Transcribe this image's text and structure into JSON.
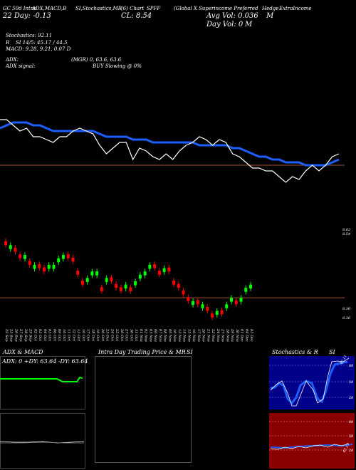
{
  "header": {
    "item1": "GC 50d Intra",
    "item2": "ADX,MACD,B",
    "item3": "SI,Stochastics,MR",
    "item4": "(6) Chart",
    "item5": "SPFF",
    "item6": "(Global X Superincome Preferred",
    "item7": "Hedge",
    "item8": "ExtraIncome",
    "row2_a": "22 Day: -0.13",
    "row2_b": "CL: 8.54",
    "row2_c": "Avg Vol: 0.036",
    "row2_c2": "M",
    "row3_c": "Day Vol: 0",
    "row3_c2": "M"
  },
  "indicators": {
    "stochastics": "Stochastics: 92.11",
    "r_line": "R",
    "si_values": "SI 14/5: 45.17 / 44.5",
    "macd": "MACD: 9.28, 9.21, 0.07 D",
    "adx": "ADX:",
    "mgr": "(MGR) 0, 63.6, 63.6",
    "adx_signal": "ADX signal:",
    "buy": "BUY Slowing @ 0%"
  },
  "price_scale": {
    "main_last": "8.62",
    "main_last2": "8.54",
    "lower_a": "8.36",
    "lower_b": "8.36"
  },
  "dates": [
    "22 Sep",
    "25 Sep",
    "26 Sep",
    "27 Sep",
    "28 Sep",
    "29 Sep",
    "02 Oct",
    "03 Oct",
    "04 Oct",
    "05 Oct",
    "06 Oct",
    "09 Oct",
    "10 Oct",
    "11 Oct",
    "12 Oct",
    "13 Oct",
    "16 Oct",
    "17 Oct",
    "18 Oct",
    "19 Oct",
    "20 Oct",
    "23 Oct",
    "24 Oct",
    "25 Oct",
    "26 Oct",
    "27 Oct",
    "30 Oct",
    "31 Oct",
    "01 Nov",
    "02 Nov",
    "03 Nov",
    "06 Nov",
    "07 Nov",
    "08 Nov",
    "09 Nov",
    "10 Nov",
    "13 Nov",
    "14 Nov",
    "15 Nov",
    "16 Nov",
    "17 Nov",
    "20 Nov",
    "21 Nov",
    "22 Nov",
    "24 Nov",
    "27 Nov",
    "28 Nov",
    "29 Nov",
    "30 Nov",
    "01 Dec",
    "04 Dec",
    "05 Dec"
  ],
  "panels": {
    "adx_title": "ADX  & MACD",
    "adx_values": "ADX: 0   +DY: 63.64   -DY: 63.64",
    "intra_title": "Intra  Day Trading Price  & MR",
    "intra_si": "SI",
    "stoch_title": "Stochastics & R",
    "stoch_si": "SI",
    "stoch_levels": [
      "80",
      "50",
      "20"
    ],
    "si_levels": [
      "80",
      "50",
      "20"
    ],
    "stoch_last": "92.11",
    "si_last": "45.17"
  },
  "colors": {
    "background": "#000000",
    "price_line": "#ffffff",
    "ma_line": "#1e5eff",
    "up_candle": "#00ff00",
    "down_candle": "#ff0000",
    "ref_line": "#a0522d",
    "adx_line": "#00ff00",
    "stoch_bg": "#00008b",
    "si_bg": "#8b0000",
    "stoch_line": "#1e5eff"
  },
  "chart_data": {
    "type": "line",
    "title": "SPFF",
    "x": [
      "22 Sep",
      "25 Sep",
      "26 Sep",
      "27 Sep",
      "28 Sep",
      "29 Sep",
      "02 Oct",
      "03 Oct",
      "04 Oct",
      "05 Oct",
      "06 Oct",
      "09 Oct",
      "10 Oct",
      "11 Oct",
      "12 Oct",
      "13 Oct",
      "16 Oct",
      "17 Oct",
      "18 Oct",
      "19 Oct",
      "20 Oct",
      "23 Oct",
      "24 Oct",
      "25 Oct",
      "26 Oct",
      "27 Oct",
      "30 Oct",
      "31 Oct",
      "01 Nov",
      "02 Nov",
      "03 Nov",
      "06 Nov",
      "07 Nov",
      "08 Nov",
      "09 Nov",
      "10 Nov",
      "13 Nov",
      "14 Nov",
      "15 Nov",
      "16 Nov",
      "17 Nov",
      "20 Nov",
      "21 Nov",
      "22 Nov",
      "24 Nov",
      "27 Nov",
      "28 Nov",
      "29 Nov",
      "30 Nov",
      "01 Dec",
      "04 Dec",
      "05 Dec"
    ],
    "series": [
      {
        "values": [
          8.78,
          8.78,
          8.76,
          8.74,
          8.75,
          8.72,
          8.72,
          8.71,
          8.7,
          8.72,
          8.72,
          8.74,
          8.75,
          8.74,
          8.73,
          8.69,
          8.66,
          8.68,
          8.7,
          8.7,
          8.64,
          8.68,
          8.67,
          8.65,
          8.64,
          8.66,
          8.64,
          8.67,
          8.69,
          8.7,
          8.72,
          8.71,
          8.69,
          8.71,
          8.7,
          8.66,
          8.65,
          8.63,
          8.61,
          8.61,
          8.6,
          8.6,
          8.58,
          8.56,
          8.58,
          8.57,
          8.6,
          8.62,
          8.6,
          8.62,
          8.65,
          8.66
        ]
      },
      {
        "values": [
          8.75,
          8.76,
          8.77,
          8.77,
          8.77,
          8.76,
          8.76,
          8.75,
          8.74,
          8.74,
          8.74,
          8.74,
          8.74,
          8.74,
          8.74,
          8.73,
          8.72,
          8.72,
          8.72,
          8.72,
          8.71,
          8.71,
          8.71,
          8.7,
          8.7,
          8.7,
          8.7,
          8.7,
          8.7,
          8.7,
          8.69,
          8.69,
          8.69,
          8.69,
          8.69,
          8.68,
          8.68,
          8.67,
          8.66,
          8.65,
          8.65,
          8.64,
          8.64,
          8.63,
          8.63,
          8.63,
          8.62,
          8.62,
          8.62,
          8.62,
          8.63,
          8.64
        ]
      }
    ],
    "ylim": [
      8.4,
      8.95
    ],
    "ref_lines": [
      8.62
    ]
  }
}
